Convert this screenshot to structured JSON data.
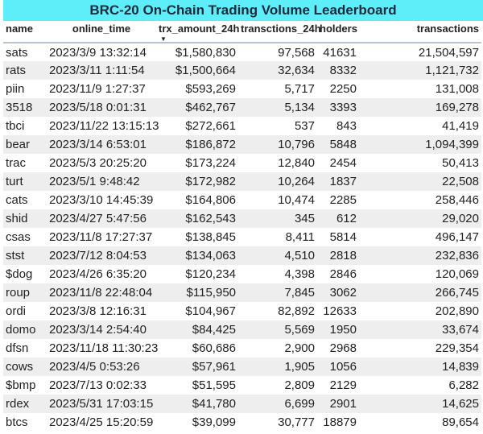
{
  "title": "BRC-20 On-Chain Trading Volume Leaderboard",
  "columns": [
    "name",
    "online_time",
    "trx_amount_24h",
    "transctions_24h",
    "holders",
    "transactions"
  ],
  "sorted_column": "trx_amount_24h",
  "sort_direction": "descending",
  "rows": [
    [
      "sats",
      "2023/3/9 13:32:14",
      "$1,580,830",
      "97,568",
      "41631",
      "21,504,597"
    ],
    [
      "rats",
      "2023/3/11 1:11:54",
      "$1,500,664",
      "32,634",
      "8332",
      "1,121,732"
    ],
    [
      "piin",
      "2023/11/9 1:27:37",
      "$593,269",
      "5,717",
      "2250",
      "131,008"
    ],
    [
      "3518",
      "2023/5/18 0:01:31",
      "$462,767",
      "5,134",
      "3393",
      "169,278"
    ],
    [
      "tbci",
      "2023/11/22 13:15:13",
      "$272,661",
      "537",
      "843",
      "41,419"
    ],
    [
      "bear",
      "2023/3/14 6:53:01",
      "$186,872",
      "10,796",
      "5848",
      "1,094,399"
    ],
    [
      "trac",
      "2023/5/3 20:25:20",
      "$173,224",
      "12,840",
      "2454",
      "50,413"
    ],
    [
      "turt",
      "2023/5/1 9:48:42",
      "$172,982",
      "10,264",
      "1837",
      "22,508"
    ],
    [
      "cats",
      "2023/3/10 14:45:39",
      "$164,806",
      "10,474",
      "2285",
      "258,446"
    ],
    [
      "shid",
      "2023/4/27 5:47:56",
      "$162,543",
      "345",
      "612",
      "29,020"
    ],
    [
      "csas",
      "2023/11/8 17:27:37",
      "$138,845",
      "8,411",
      "5814",
      "496,147"
    ],
    [
      "stst",
      "2023/7/12 8:04:53",
      "$134,063",
      "4,510",
      "2818",
      "232,836"
    ],
    [
      "$dog",
      "2023/4/26 6:35:20",
      "$120,234",
      "4,398",
      "2846",
      "120,069"
    ],
    [
      "roup",
      "2023/11/8 22:48:04",
      "$115,950",
      "7,845",
      "3062",
      "266,745"
    ],
    [
      "ordi",
      "2023/3/8 12:16:31",
      "$104,967",
      "82,892",
      "12633",
      "202,890"
    ],
    [
      "domo",
      "2023/3/14 2:54:40",
      "$84,425",
      "5,569",
      "1950",
      "33,674"
    ],
    [
      "dfsn",
      "2023/11/18 11:30:23",
      "$60,686",
      "2,900",
      "2968",
      "229,354"
    ],
    [
      "cows",
      "2023/4/5 0:53:26",
      "$57,961",
      "1,905",
      "1056",
      "14,839"
    ],
    [
      "$bmp",
      "2023/7/13 0:02:33",
      "$51,595",
      "2,809",
      "2129",
      "6,282"
    ],
    [
      "rdex",
      "2023/5/31 17:03:15",
      "$41,780",
      "6,699",
      "2901",
      "14,625"
    ],
    [
      "btcs",
      "2023/4/25 15:20:59",
      "$39,099",
      "30,777",
      "18879",
      "89,654"
    ]
  ],
  "colors": {
    "title_bg": "#5eeefa",
    "alt_row": "#eeeeee",
    "header_rule": "#b8c4d4"
  }
}
